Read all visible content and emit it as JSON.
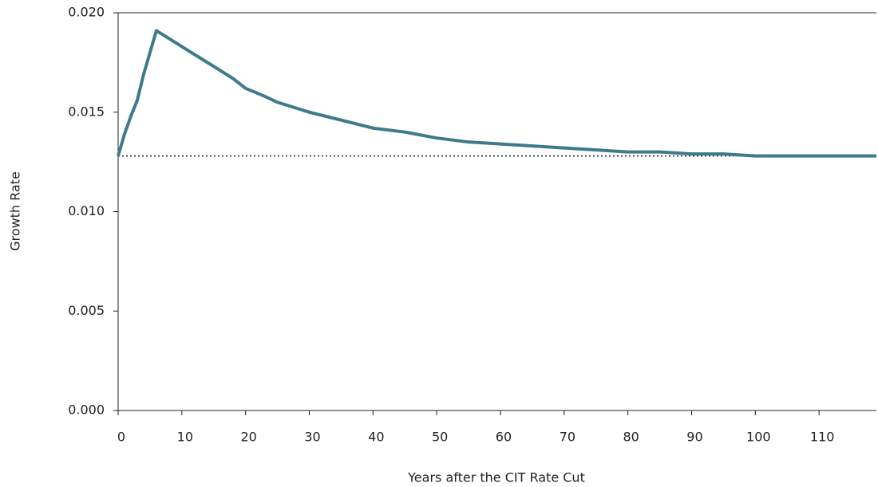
{
  "chart_data": {
    "type": "line",
    "x_label": "Years after the CIT Rate Cut",
    "y_label": "Growth Rate",
    "x": [
      0,
      1,
      2,
      3,
      4,
      5,
      6,
      8,
      10,
      12,
      15,
      18,
      20,
      23,
      25,
      28,
      30,
      35,
      40,
      45,
      50,
      55,
      60,
      65,
      70,
      75,
      80,
      85,
      90,
      95,
      100,
      105,
      110,
      113,
      119
    ],
    "series": [
      {
        "name": "Growth Rate",
        "color": "#3f7a8a",
        "values": [
          0.0128,
          0.0139,
          0.0148,
          0.0156,
          0.0169,
          0.018,
          0.0191,
          0.0187,
          0.0183,
          0.0179,
          0.0173,
          0.0167,
          0.0162,
          0.0158,
          0.0155,
          0.0152,
          0.015,
          0.0146,
          0.0142,
          0.014,
          0.0137,
          0.0135,
          0.0134,
          0.0133,
          0.0132,
          0.0131,
          0.013,
          0.013,
          0.0129,
          0.0129,
          0.0128,
          0.0128,
          0.0128,
          0.0128,
          0.0128
        ]
      }
    ],
    "baseline": 0.0128,
    "xlim": [
      0,
      119
    ],
    "xticks": [
      0,
      10,
      20,
      30,
      40,
      50,
      60,
      70,
      80,
      90,
      100,
      110
    ],
    "ylim": [
      0,
      0.02
    ],
    "yticks": [
      {
        "value": 0,
        "label": "0.000"
      },
      {
        "value": 0.005,
        "label": "0.005"
      },
      {
        "value": 0.01,
        "label": "0.010"
      },
      {
        "value": 0.015,
        "label": "0.015"
      },
      {
        "value": 0.02,
        "label": "0.020"
      }
    ]
  }
}
